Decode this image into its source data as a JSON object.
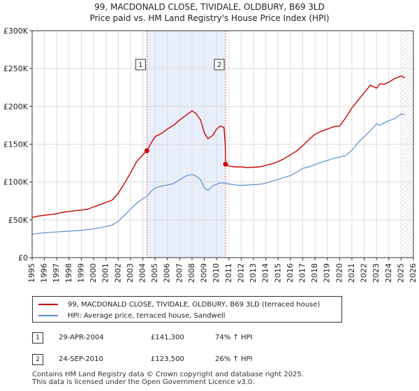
{
  "title_line1": "99, MACDONALD CLOSE, TIVIDALE, OLDBURY, B69 3LD",
  "title_line2": "Price paid vs. HM Land Registry's House Price Index (HPI)",
  "colors": {
    "property": "#cc0000",
    "hpi": "#5b8fd0",
    "shade": "#e8eefa",
    "grid": "#dddddd"
  },
  "chart_data": {
    "type": "line",
    "title": "99, MACDONALD CLOSE, TIVIDALE, OLDBURY, B69 3LD — Price paid vs. HM Land Registry's House Price Index (HPI)",
    "xlabel": "",
    "ylabel": "",
    "xlim": [
      1995,
      2026
    ],
    "ylim": [
      0,
      300000
    ],
    "y_ticks": [
      0,
      50000,
      100000,
      150000,
      200000,
      250000,
      300000
    ],
    "y_tick_labels": [
      "£0",
      "£50K",
      "£100K",
      "£150K",
      "£200K",
      "£250K",
      "£300K"
    ],
    "x_ticks": [
      1995,
      1996,
      1997,
      1998,
      1999,
      2000,
      2001,
      2002,
      2003,
      2004,
      2005,
      2006,
      2007,
      2008,
      2009,
      2010,
      2011,
      2012,
      2013,
      2014,
      2015,
      2016,
      2017,
      2018,
      2019,
      2020,
      2021,
      2022,
      2023,
      2024,
      2025,
      2026
    ],
    "x_tick_labels": [
      "1995",
      "1996",
      "1997",
      "1998",
      "1999",
      "2000",
      "2001",
      "2002",
      "2003",
      "2004",
      "2005",
      "2006",
      "2007",
      "2008",
      "2009",
      "2010",
      "2011",
      "2012",
      "2013",
      "2014",
      "2015",
      "2016",
      "2017",
      "2018",
      "2019",
      "2020",
      "2021",
      "2022",
      "2023",
      "2024",
      "2025",
      "2026"
    ],
    "shaded_region": [
      2004.33,
      2010.73
    ],
    "hatched_from": 2025.1,
    "series": [
      {
        "name": "99, MACDONALD CLOSE, TIVIDALE, OLDBURY, B69 3LD (terraced house)",
        "x": [
          1995,
          1995.5,
          1996,
          1996.5,
          1997,
          1997.5,
          1998,
          1998.5,
          1999,
          1999.5,
          2000,
          2000.5,
          2001,
          2001.5,
          2002,
          2002.5,
          2003,
          2003.5,
          2004,
          2004.33,
          2004.7,
          2005,
          2005.5,
          2006,
          2006.5,
          2007,
          2007.5,
          2008,
          2008.3,
          2008.7,
          2009,
          2009.3,
          2009.7,
          2010,
          2010.3,
          2010.6,
          2010.7,
          2010.73,
          2011,
          2011.5,
          2012,
          2012.5,
          2013,
          2013.5,
          2014,
          2014.5,
          2015,
          2015.5,
          2016,
          2016.5,
          2017,
          2017.5,
          2018,
          2018.5,
          2019,
          2019.5,
          2020,
          2020.5,
          2021,
          2021.5,
          2022,
          2022.5,
          2023,
          2023.3,
          2023.6,
          2024,
          2024.5,
          2025,
          2025.3
        ],
        "values": [
          53000,
          55000,
          56000,
          57000,
          58000,
          60000,
          61000,
          62000,
          63000,
          64000,
          67000,
          70000,
          73000,
          76000,
          85000,
          98000,
          112000,
          127000,
          136000,
          141300,
          152000,
          160000,
          164000,
          170000,
          175000,
          182000,
          188000,
          194000,
          191000,
          182000,
          165000,
          157000,
          162000,
          170000,
          174000,
          172000,
          150000,
          123500,
          121000,
          120000,
          120000,
          119000,
          119500,
          120000,
          122000,
          124000,
          127000,
          131000,
          136000,
          141000,
          148000,
          156000,
          163000,
          167000,
          170000,
          173000,
          174000,
          185000,
          198000,
          208000,
          218000,
          228000,
          224000,
          230000,
          229000,
          232000,
          237000,
          240000,
          238000
        ]
      },
      {
        "name": "HPI: Average price, terraced house, Sandwell",
        "x": [
          1995,
          1995.5,
          1996,
          1996.5,
          1997,
          1997.5,
          1998,
          1998.5,
          1999,
          1999.5,
          2000,
          2000.5,
          2001,
          2001.5,
          2002,
          2002.5,
          2003,
          2003.5,
          2004,
          2004.33,
          2004.7,
          2005,
          2005.5,
          2006,
          2006.5,
          2007,
          2007.5,
          2008,
          2008.3,
          2008.7,
          2009,
          2009.3,
          2009.7,
          2010,
          2010.3,
          2010.6,
          2010.73,
          2011,
          2011.5,
          2012,
          2012.5,
          2013,
          2013.5,
          2014,
          2014.5,
          2015,
          2015.5,
          2016,
          2016.5,
          2017,
          2017.5,
          2018,
          2018.5,
          2019,
          2019.5,
          2020,
          2020.5,
          2021,
          2021.5,
          2022,
          2022.5,
          2023,
          2023.3,
          2023.6,
          2024,
          2024.5,
          2025,
          2025.3
        ],
        "values": [
          31000,
          32000,
          33000,
          33500,
          34000,
          34500,
          35000,
          35500,
          36000,
          37000,
          38000,
          39500,
          41000,
          43000,
          48000,
          56000,
          64000,
          72000,
          78000,
          81000,
          88000,
          92000,
          94500,
          96000,
          98000,
          103000,
          108000,
          110000,
          108000,
          103000,
          92000,
          89000,
          95000,
          97000,
          99000,
          98500,
          98000,
          97500,
          96000,
          95500,
          96000,
          96500,
          97000,
          98500,
          101000,
          103500,
          106000,
          108500,
          113000,
          118000,
          120000,
          123000,
          126000,
          128500,
          131000,
          133000,
          135000,
          142000,
          152000,
          160000,
          168000,
          177000,
          175000,
          178000,
          181000,
          184000,
          190000,
          189000
        ]
      }
    ],
    "sales": [
      {
        "label": "1",
        "x": 2004.33,
        "value": 141300
      },
      {
        "label": "2",
        "x": 2010.73,
        "value": 123500
      }
    ]
  },
  "legend": {
    "property_label": "99, MACDONALD CLOSE, TIVIDALE, OLDBURY, B69 3LD (terraced house)",
    "hpi_label": "HPI: Average price, terraced house, Sandwell"
  },
  "sales_table": [
    {
      "num": "1",
      "date": "29-APR-2004",
      "price": "£141,300",
      "hpi": "74% ↑ HPI"
    },
    {
      "num": "2",
      "date": "24-SEP-2010",
      "price": "£123,500",
      "hpi": "26% ↑ HPI"
    }
  ],
  "footer_line1": "Contains HM Land Registry data © Crown copyright and database right 2025.",
  "footer_line2": "This data is licensed under the Open Government Licence v3.0."
}
